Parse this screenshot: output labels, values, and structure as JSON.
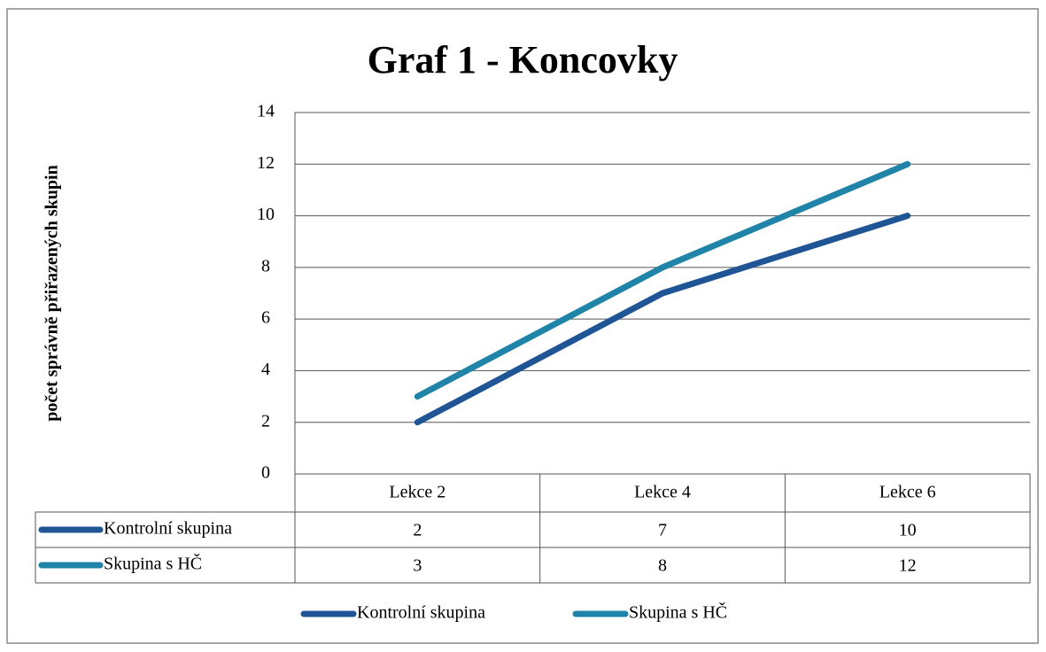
{
  "chart_data": {
    "type": "line",
    "title": "Graf 1 - Koncovky",
    "y_label": "počet správně přiřazených skupin",
    "categories": [
      "Lekce 2",
      "Lekce 4",
      "Lekce 6"
    ],
    "series": [
      {
        "name": "Kontrolní skupina",
        "color": "#1f5595",
        "values": [
          2,
          7,
          10
        ]
      },
      {
        "name": "Skupina s HČ",
        "color": "#1f84a8",
        "values": [
          3,
          8,
          12
        ]
      }
    ],
    "ylim": [
      0,
      14
    ],
    "yticks": [
      0,
      2,
      4,
      6,
      8,
      10,
      12,
      14
    ],
    "grid": true,
    "data_table": true,
    "legend": "bottom"
  }
}
